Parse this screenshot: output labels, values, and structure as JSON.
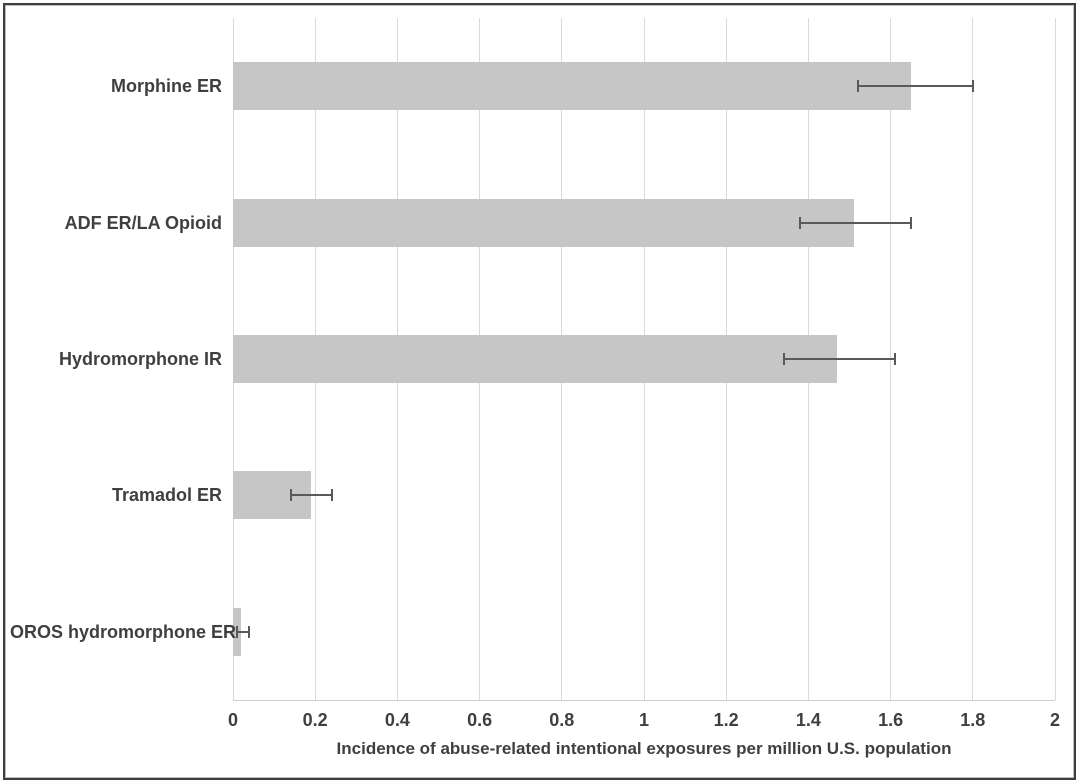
{
  "chart_data": {
    "type": "bar",
    "orientation": "horizontal",
    "title": "",
    "xlabel": "Incidence of abuse-related intentional exposures per million U.S. population",
    "ylabel": "",
    "categories": [
      "Morphine ER",
      "ADF ER/LA Opioid",
      "Hydromorphone IR",
      "Tramadol ER",
      "OROS hydromorphone ER"
    ],
    "series": [
      {
        "name": "Incidence of abuse-related intentional exposures per million U.S. population",
        "values": [
          1.65,
          1.51,
          1.47,
          0.19,
          0.02
        ],
        "error_low": [
          1.52,
          1.38,
          1.34,
          0.14,
          0.01
        ],
        "error_high": [
          1.8,
          1.65,
          1.61,
          0.24,
          0.04
        ]
      }
    ],
    "xlim": [
      0,
      2
    ],
    "x_ticks": [
      "0",
      "0.2",
      "0.4",
      "0.6",
      "0.8",
      "1",
      "1.2",
      "1.4",
      "1.6",
      "1.8",
      "2"
    ],
    "x_tick_values": [
      0,
      0.2,
      0.4,
      0.6,
      0.8,
      1,
      1.2,
      1.4,
      1.6,
      1.8,
      2
    ],
    "grid": "vertical",
    "legend": "none",
    "colors": {
      "bar": "#c6c6c6",
      "grid": "#d9d9d9",
      "error_bar": "#595959",
      "text": "#3f3f3f",
      "frame": "#3e3e3e",
      "background": "#ffffff"
    }
  }
}
